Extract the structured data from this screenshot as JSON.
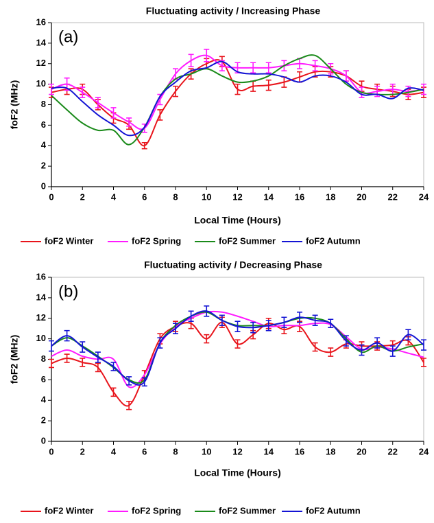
{
  "chart_data": [
    {
      "type": "line",
      "title": "Fluctuating activity / Increasing Phase",
      "annotation": "(a)",
      "xlabel": "Local Time (Hours)",
      "ylabel": "foF2 (MHz)",
      "x": [
        0,
        1,
        2,
        3,
        4,
        5,
        6,
        7,
        8,
        9,
        10,
        11,
        12,
        13,
        14,
        15,
        16,
        17,
        18,
        19,
        20,
        21,
        22,
        23,
        24
      ],
      "xlim": [
        0,
        24
      ],
      "xticks": [
        0,
        2,
        4,
        6,
        8,
        10,
        12,
        14,
        16,
        18,
        20,
        22,
        24
      ],
      "ylim": [
        0,
        16
      ],
      "yticks": [
        0,
        2,
        4,
        6,
        8,
        10,
        12,
        14,
        16
      ],
      "series": [
        {
          "name": "foF2 Winter",
          "color": "#e8141b",
          "values": [
            9.2,
            9.5,
            9.5,
            8.0,
            6.7,
            6.0,
            4.0,
            7.0,
            9.3,
            11.0,
            12.0,
            12.2,
            9.5,
            9.8,
            9.9,
            10.2,
            10.7,
            11.2,
            11.2,
            10.8,
            9.8,
            9.5,
            9.3,
            9.0,
            9.2
          ],
          "errors": [
            0.5,
            0.5,
            0.5,
            0.5,
            0.5,
            0.4,
            0.3,
            0.5,
            0.5,
            0.5,
            0.5,
            0.5,
            0.5,
            0.5,
            0.5,
            0.5,
            0.5,
            0.5,
            0.5,
            0.5,
            0.5,
            0.5,
            0.5,
            0.5,
            0.5
          ]
        },
        {
          "name": "foF2 Spring",
          "color": "#ff1aff",
          "values": [
            9.5,
            10.0,
            9.2,
            8.2,
            7.2,
            6.3,
            5.7,
            8.5,
            11.0,
            12.3,
            12.8,
            11.8,
            11.6,
            11.6,
            11.6,
            11.8,
            12.0,
            11.8,
            11.5,
            10.8,
            9.2,
            9.3,
            9.5,
            9.3,
            9.5
          ],
          "errors": [
            0.5,
            0.6,
            0.5,
            0.5,
            0.5,
            0.4,
            0.4,
            0.5,
            0.5,
            0.6,
            0.6,
            0.5,
            0.5,
            0.5,
            0.5,
            0.5,
            0.5,
            0.5,
            0.5,
            0.5,
            0.5,
            0.5,
            0.5,
            0.5,
            0.5
          ]
        },
        {
          "name": "foF2 Summer",
          "color": "#1a8a1a",
          "values": [
            8.9,
            7.5,
            6.2,
            5.5,
            5.5,
            4.1,
            5.8,
            8.8,
            10.5,
            11.0,
            11.5,
            10.8,
            10.2,
            10.3,
            10.8,
            11.8,
            12.5,
            12.8,
            11.5,
            10.0,
            9.2,
            9.0,
            9.0,
            9.2,
            9.5
          ]
        },
        {
          "name": "foF2 Autumn",
          "color": "#1414d4",
          "values": [
            9.6,
            9.6,
            8.3,
            7.0,
            6.0,
            5.0,
            5.8,
            8.8,
            10.2,
            11.3,
            11.6,
            12.2,
            11.2,
            11.0,
            11.0,
            10.7,
            10.2,
            10.8,
            10.8,
            10.2,
            9.0,
            9.0,
            8.6,
            9.6,
            9.4
          ]
        }
      ]
    },
    {
      "type": "line",
      "title": "Fluctuating activity / Decreasing Phase",
      "annotation": "(b)",
      "xlabel": "Local Time (Hours)",
      "ylabel": "foF2 (MHz)",
      "x": [
        0,
        1,
        2,
        3,
        4,
        5,
        6,
        7,
        8,
        9,
        10,
        11,
        12,
        13,
        14,
        15,
        16,
        17,
        18,
        19,
        20,
        21,
        22,
        23,
        24
      ],
      "xlim": [
        0,
        24
      ],
      "xticks": [
        0,
        2,
        4,
        6,
        8,
        10,
        12,
        14,
        16,
        18,
        20,
        22,
        24
      ],
      "ylim": [
        0,
        16
      ],
      "yticks": [
        0,
        2,
        4,
        6,
        8,
        10,
        12,
        14,
        16
      ],
      "series": [
        {
          "name": "foF2 Winter",
          "color": "#e8141b",
          "values": [
            7.6,
            8.1,
            7.7,
            7.2,
            4.8,
            3.5,
            6.5,
            10.0,
            11.2,
            11.5,
            10.0,
            11.6,
            9.5,
            10.4,
            11.5,
            10.9,
            11.2,
            9.2,
            8.7,
            9.5,
            9.3,
            9.3,
            9.4,
            9.8,
            7.7
          ],
          "errors": [
            0.4,
            0.4,
            0.4,
            0.4,
            0.4,
            0.4,
            0.4,
            0.5,
            0.5,
            0.5,
            0.4,
            0.5,
            0.4,
            0.4,
            0.5,
            0.4,
            0.5,
            0.4,
            0.4,
            0.4,
            0.4,
            0.4,
            0.4,
            0.4,
            0.4
          ]
        },
        {
          "name": "foF2 Spring",
          "color": "#ff1aff",
          "values": [
            8.3,
            8.9,
            8.3,
            8.0,
            8.0,
            5.3,
            6.5,
            9.5,
            11.2,
            12.0,
            12.6,
            12.6,
            12.2,
            11.7,
            11.2,
            11.3,
            11.3,
            11.5,
            11.4,
            10.2,
            9.0,
            9.2,
            9.0,
            8.6,
            8.2
          ]
        },
        {
          "name": "foF2 Summer",
          "color": "#1a8a1a",
          "values": [
            9.3,
            10.1,
            9.3,
            8.3,
            7.2,
            6.0,
            6.0,
            9.6,
            11.3,
            12.2,
            12.6,
            11.8,
            11.3,
            11.3,
            11.3,
            11.6,
            12.0,
            12.0,
            11.5,
            10.0,
            8.7,
            9.3,
            8.8,
            9.2,
            9.5
          ]
        },
        {
          "name": "foF2 Autumn",
          "color": "#1414d4",
          "values": [
            9.3,
            10.3,
            9.2,
            8.2,
            7.3,
            5.9,
            5.8,
            9.6,
            11.0,
            12.2,
            12.7,
            11.8,
            11.2,
            11.1,
            11.3,
            11.6,
            12.1,
            11.8,
            11.5,
            9.8,
            8.9,
            9.6,
            8.8,
            10.4,
            9.4
          ],
          "errors": [
            0.5,
            0.5,
            0.5,
            0.5,
            0.4,
            0.4,
            0.4,
            0.5,
            0.5,
            0.5,
            0.5,
            0.5,
            0.5,
            0.5,
            0.5,
            0.5,
            0.5,
            0.5,
            0.4,
            0.5,
            0.5,
            0.5,
            0.5,
            0.5,
            0.5
          ]
        }
      ]
    }
  ]
}
